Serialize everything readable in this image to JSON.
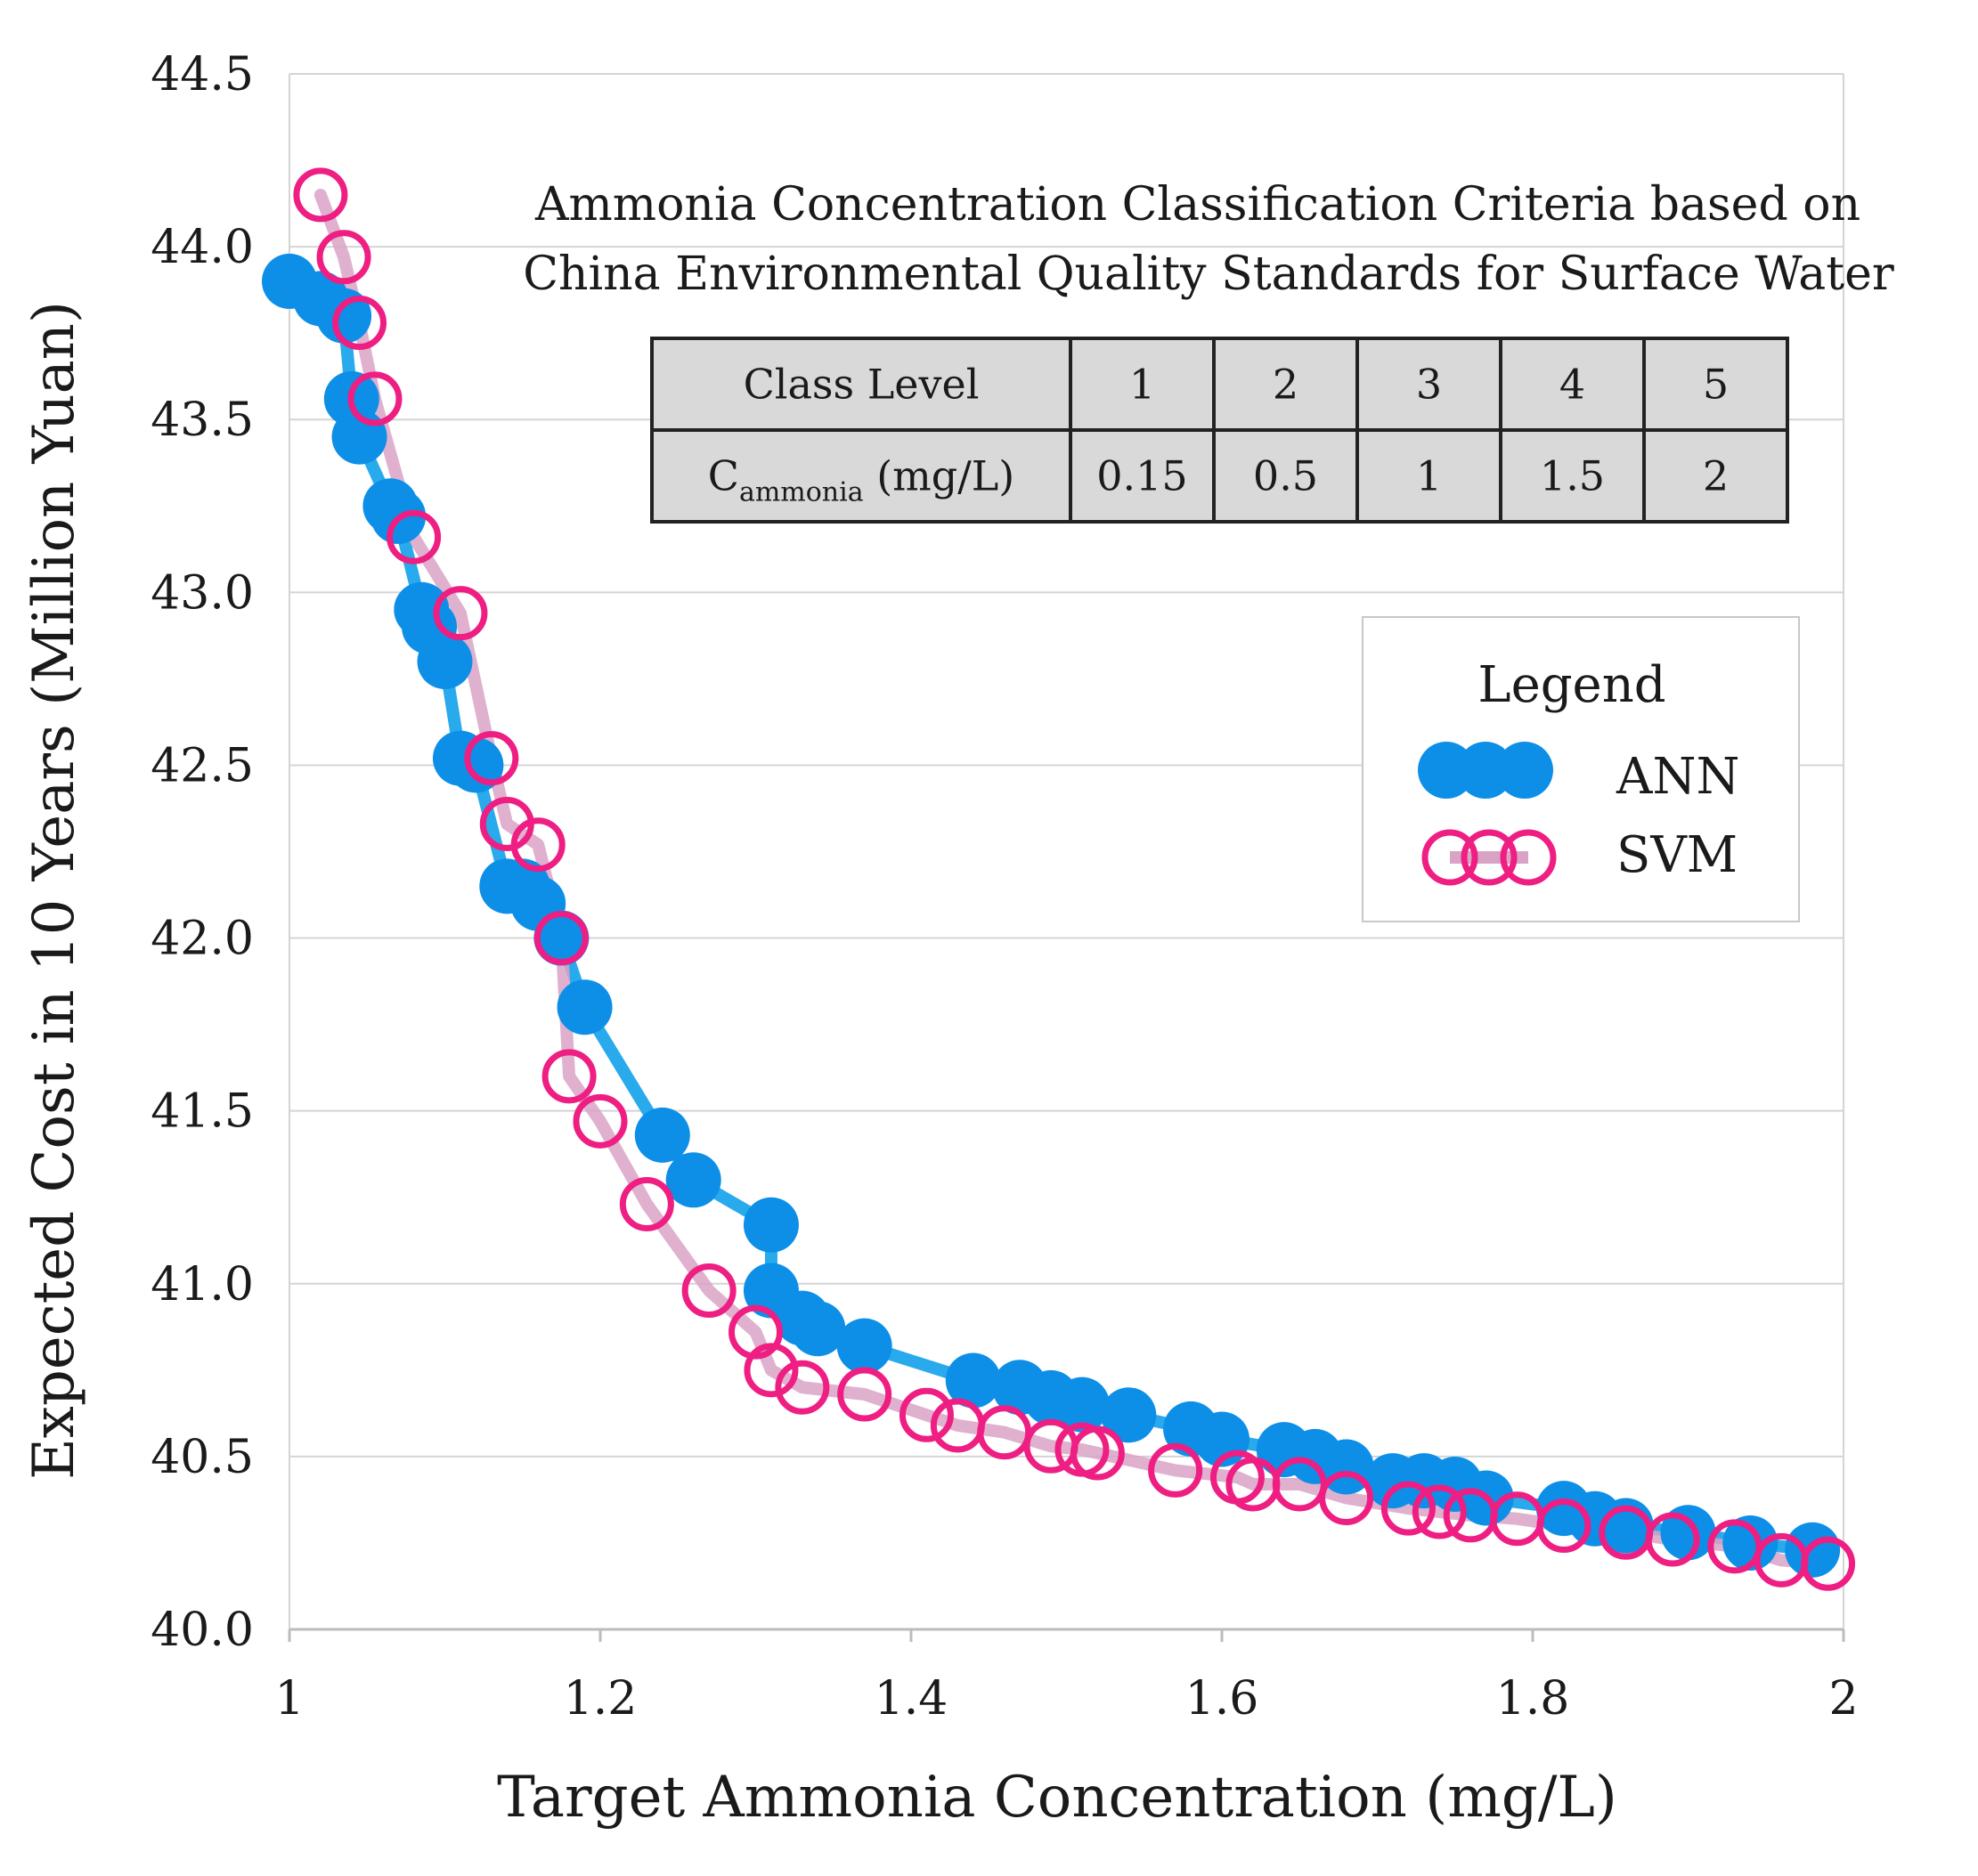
{
  "chart_data": {
    "type": "line",
    "xlabel": "Target Ammonia Concentration (mg/L)",
    "ylabel": "Expected Cost in 10 Years (Million Yuan)",
    "xlim": [
      1,
      2
    ],
    "ylim": [
      40.0,
      44.5
    ],
    "x_ticks": [
      "1",
      "1.2",
      "1.4",
      "1.6",
      "1.8",
      "2"
    ],
    "x_tick_values": [
      1,
      1.2,
      1.4,
      1.6,
      1.8,
      2
    ],
    "y_ticks": [
      "40.0",
      "40.5",
      "41.0",
      "41.5",
      "42.0",
      "42.5",
      "43.0",
      "43.5",
      "44.0",
      "44.5"
    ],
    "y_tick_values": [
      40.0,
      40.5,
      41.0,
      41.5,
      42.0,
      42.5,
      43.0,
      43.5,
      44.0,
      44.5
    ],
    "grid": true,
    "legend": {
      "title": "Legend",
      "position": "right"
    },
    "series": [
      {
        "name": "ANN",
        "color": "#0d8fe8",
        "line_color": "#29aaec",
        "marker": "filled-circle",
        "x": [
          1.0,
          1.02,
          1.035,
          1.04,
          1.045,
          1.065,
          1.07,
          1.085,
          1.09,
          1.1,
          1.11,
          1.12,
          1.14,
          1.15,
          1.16,
          1.175,
          1.19,
          1.24,
          1.26,
          1.31,
          1.31,
          1.33,
          1.34,
          1.37,
          1.44,
          1.47,
          1.49,
          1.51,
          1.54,
          1.58,
          1.6,
          1.64,
          1.66,
          1.68,
          1.71,
          1.73,
          1.75,
          1.77,
          1.82,
          1.84,
          1.86,
          1.9,
          1.94,
          1.98
        ],
        "y": [
          43.9,
          43.85,
          43.8,
          43.56,
          43.45,
          43.25,
          43.22,
          42.95,
          42.9,
          42.8,
          42.52,
          42.5,
          42.15,
          42.15,
          42.1,
          42.0,
          41.8,
          41.43,
          41.3,
          41.17,
          40.98,
          40.9,
          40.87,
          40.82,
          40.72,
          40.7,
          40.67,
          40.65,
          40.62,
          40.58,
          40.55,
          40.52,
          40.5,
          40.47,
          40.43,
          40.43,
          40.42,
          40.38,
          40.35,
          40.32,
          40.3,
          40.28,
          40.25,
          40.23
        ]
      },
      {
        "name": "SVM",
        "color": "#ee1e82",
        "line_color": "#d9a3c6",
        "marker": "open-circle",
        "x": [
          1.02,
          1.035,
          1.045,
          1.055,
          1.08,
          1.11,
          1.13,
          1.14,
          1.16,
          1.175,
          1.18,
          1.2,
          1.23,
          1.27,
          1.3,
          1.31,
          1.33,
          1.37,
          1.41,
          1.43,
          1.46,
          1.49,
          1.51,
          1.52,
          1.57,
          1.61,
          1.62,
          1.65,
          1.68,
          1.72,
          1.74,
          1.76,
          1.79,
          1.82,
          1.86,
          1.89,
          1.93,
          1.96,
          1.99
        ],
        "y": [
          44.15,
          43.97,
          43.78,
          43.56,
          43.16,
          42.94,
          42.52,
          42.33,
          42.27,
          42.0,
          41.6,
          41.47,
          41.23,
          40.98,
          40.86,
          40.75,
          40.7,
          40.68,
          40.62,
          40.59,
          40.57,
          40.53,
          40.52,
          40.51,
          40.46,
          40.44,
          40.42,
          40.42,
          40.38,
          40.35,
          40.34,
          40.33,
          40.32,
          40.3,
          40.28,
          40.26,
          40.24,
          40.2,
          40.19
        ]
      }
    ]
  },
  "inset": {
    "title_line1": "Ammonia Concentration Classification Criteria based on",
    "title_line2": "China Environmental Quality Standards for Surface Water",
    "header_label": "Class Level",
    "classes": [
      "1",
      "2",
      "3",
      "4",
      "5"
    ],
    "row_label_main": "C",
    "row_label_sub": "ammonia",
    "row_label_unit": " (mg/L)",
    "values": [
      "0.15",
      "0.5",
      "1",
      "1.5",
      "2"
    ],
    "header_fill": "#d9d9d9",
    "border_color": "#222222"
  },
  "legend": {
    "title": "Legend",
    "items": [
      "ANN",
      "SVM"
    ]
  }
}
